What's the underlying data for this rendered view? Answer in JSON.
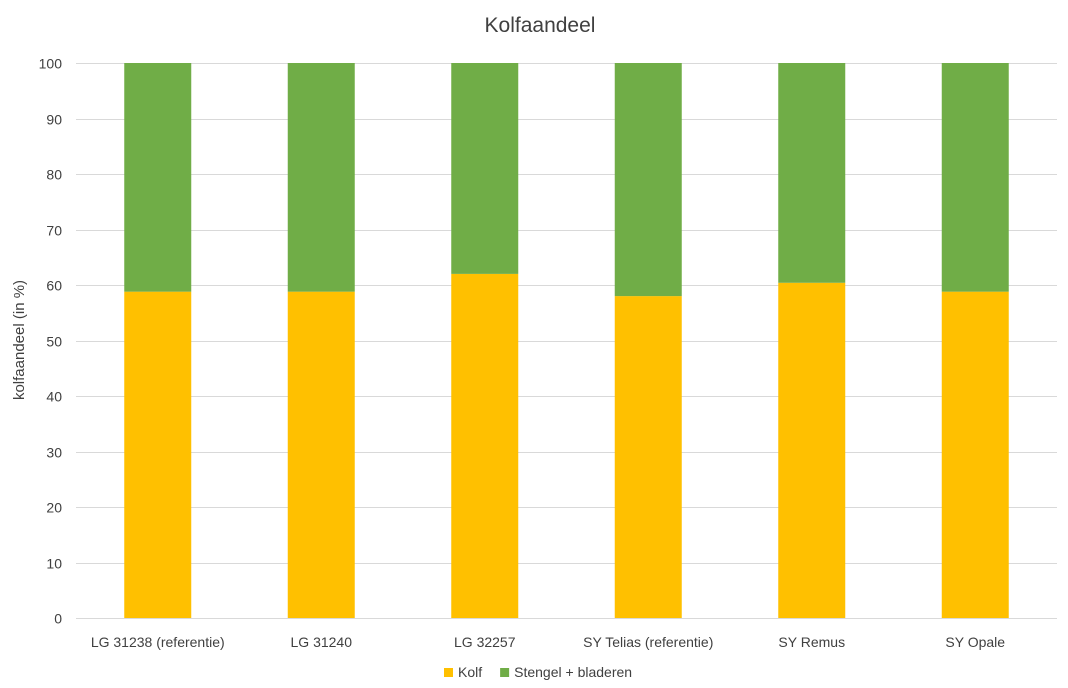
{
  "chart_data": {
    "type": "bar",
    "stacked": true,
    "title": "Kolfaandeel",
    "xlabel": "",
    "ylabel": "kolfaandeel (in %)",
    "ylim": [
      0,
      100
    ],
    "yticks": [
      0,
      10,
      20,
      30,
      40,
      50,
      60,
      70,
      80,
      90,
      100
    ],
    "grid": true,
    "legend_position": "bottom",
    "categories": [
      "LG 31238 (referentie)",
      "LG 31240",
      "LG 32257",
      "SY Telias (referentie)",
      "SY Remus",
      "SY Opale"
    ],
    "series": [
      {
        "name": "Kolf",
        "color": "#FFC000",
        "values": [
          58.8,
          58.8,
          62.0,
          58.0,
          60.4,
          58.8
        ]
      },
      {
        "name": "Stengel + bladeren",
        "color": "#70AD47",
        "values": [
          41.2,
          41.2,
          38.0,
          42.0,
          39.6,
          41.2
        ]
      }
    ]
  }
}
